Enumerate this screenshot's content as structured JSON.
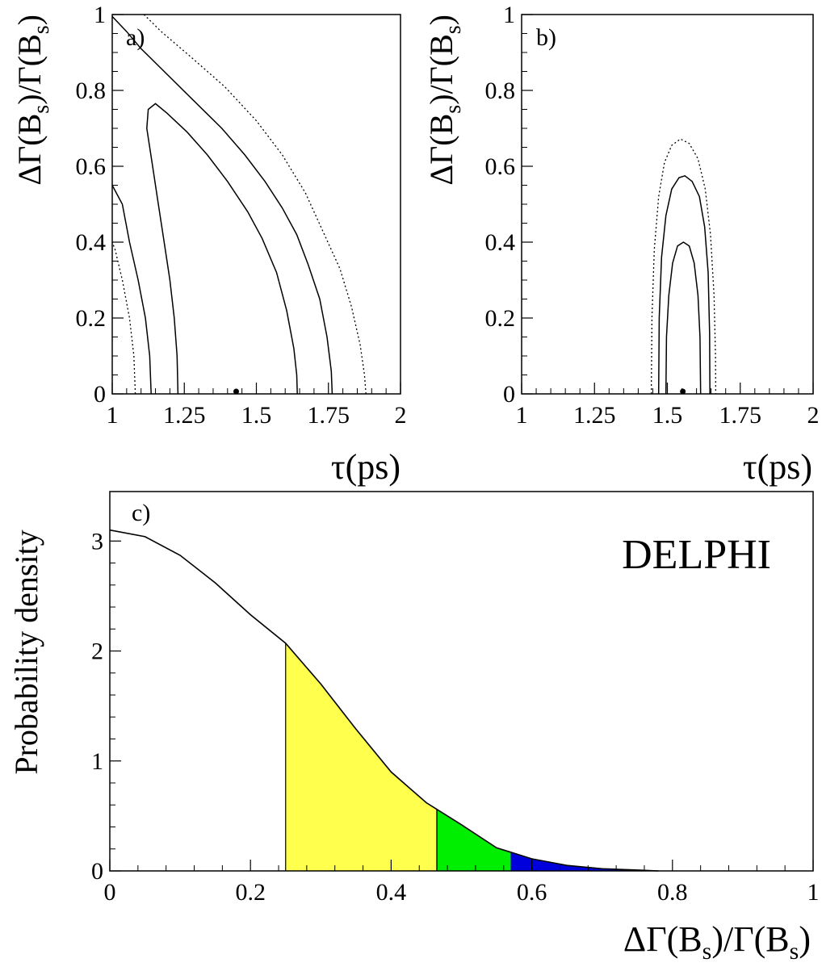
{
  "chart_data": [
    {
      "panel": "a)",
      "type": "contour",
      "xlabel_main": "τ",
      "xlabel_unit": "(ps)",
      "ylabel_parts": [
        "ΔΓ(B",
        "s",
        ")/Γ(B",
        "s",
        ")"
      ],
      "xlim": [
        1,
        2
      ],
      "ylim": [
        0,
        1
      ],
      "xticks": [
        1,
        1.25,
        1.5,
        1.75,
        2
      ],
      "xtick_labels": [
        "1",
        "1.25",
        "1.5",
        "1.75",
        "2"
      ],
      "yticks": [
        0,
        0.2,
        0.4,
        0.6,
        0.8,
        1
      ],
      "ytick_labels": [
        "0",
        "0.2",
        "0.4",
        "0.6",
        "0.8",
        "1"
      ],
      "best_fit": [
        1.43,
        0.0
      ],
      "contours": [
        {
          "style": "solid",
          "points": [
            [
              1.228,
              0
            ],
            [
              1.225,
              0.1
            ],
            [
              1.215,
              0.2
            ],
            [
              1.2,
              0.3
            ],
            [
              1.18,
              0.4
            ],
            [
              1.16,
              0.5
            ],
            [
              1.14,
              0.6
            ],
            [
              1.12,
              0.7
            ],
            [
              1.125,
              0.75
            ],
            [
              1.15,
              0.765
            ],
            [
              1.19,
              0.74
            ],
            [
              1.26,
              0.69
            ],
            [
              1.33,
              0.63
            ],
            [
              1.4,
              0.56
            ],
            [
              1.47,
              0.48
            ],
            [
              1.52,
              0.41
            ],
            [
              1.57,
              0.32
            ],
            [
              1.605,
              0.22
            ],
            [
              1.63,
              0.12
            ],
            [
              1.64,
              0.05
            ],
            [
              1.642,
              0
            ]
          ]
        },
        {
          "style": "solid",
          "points": [
            [
              1.135,
              0
            ],
            [
              1.13,
              0.1
            ],
            [
              1.115,
              0.2
            ],
            [
              1.09,
              0.3
            ],
            [
              1.06,
              0.4
            ],
            [
              1.035,
              0.5
            ],
            [
              1.0,
              0.55
            ]
          ]
        },
        {
          "style": "solid",
          "points": [
            [
              1.0,
              0.995
            ],
            [
              1.05,
              0.955
            ],
            [
              1.1,
              0.91
            ],
            [
              1.18,
              0.85
            ],
            [
              1.28,
              0.775
            ],
            [
              1.38,
              0.7
            ],
            [
              1.46,
              0.63
            ],
            [
              1.53,
              0.56
            ],
            [
              1.59,
              0.49
            ],
            [
              1.64,
              0.42
            ],
            [
              1.68,
              0.34
            ],
            [
              1.72,
              0.25
            ],
            [
              1.745,
              0.15
            ],
            [
              1.76,
              0.06
            ],
            [
              1.763,
              0
            ]
          ]
        },
        {
          "style": "dotted",
          "points": [
            [
              1.08,
              0
            ],
            [
              1.075,
              0.1
            ],
            [
              1.06,
              0.2
            ],
            [
              1.035,
              0.3
            ],
            [
              1.01,
              0.38
            ],
            [
              1.0,
              0.4
            ]
          ]
        },
        {
          "style": "dotted",
          "points": [
            [
              1.11,
              1.0
            ],
            [
              1.17,
              0.955
            ],
            [
              1.27,
              0.89
            ],
            [
              1.39,
              0.81
            ],
            [
              1.5,
              0.72
            ],
            [
              1.59,
              0.63
            ],
            [
              1.67,
              0.53
            ],
            [
              1.73,
              0.43
            ],
            [
              1.79,
              0.33
            ],
            [
              1.83,
              0.23
            ],
            [
              1.86,
              0.13
            ],
            [
              1.875,
              0.05
            ],
            [
              1.88,
              0
            ]
          ]
        }
      ]
    },
    {
      "panel": "b)",
      "type": "contour",
      "xlabel_main": "τ",
      "xlabel_unit": "(ps)",
      "ylabel_parts": [
        "ΔΓ(B",
        "s",
        ")/Γ(B",
        "s",
        ")"
      ],
      "xlim": [
        1,
        2
      ],
      "ylim": [
        0,
        1
      ],
      "xticks": [
        1,
        1.25,
        1.5,
        1.75,
        2
      ],
      "xtick_labels": [
        "1",
        "1.25",
        "1.5",
        "1.75",
        "2"
      ],
      "yticks": [
        0,
        0.2,
        0.4,
        0.6,
        0.8,
        1
      ],
      "ytick_labels": [
        "0",
        "0.2",
        "0.4",
        "0.6",
        "0.8",
        "1"
      ],
      "best_fit": [
        1.553,
        0.0
      ],
      "contours": [
        {
          "style": "solid",
          "points": [
            [
              1.495,
              0
            ],
            [
              1.497,
              0.15
            ],
            [
              1.505,
              0.26
            ],
            [
              1.518,
              0.345
            ],
            [
              1.535,
              0.39
            ],
            [
              1.555,
              0.4
            ],
            [
              1.575,
              0.39
            ],
            [
              1.592,
              0.345
            ],
            [
              1.605,
              0.26
            ],
            [
              1.612,
              0.15
            ],
            [
              1.614,
              0
            ]
          ]
        },
        {
          "style": "solid",
          "points": [
            [
              1.47,
              0
            ],
            [
              1.472,
              0.2
            ],
            [
              1.48,
              0.36
            ],
            [
              1.495,
              0.47
            ],
            [
              1.515,
              0.54
            ],
            [
              1.54,
              0.57
            ],
            [
              1.56,
              0.575
            ],
            [
              1.585,
              0.56
            ],
            [
              1.61,
              0.52
            ],
            [
              1.628,
              0.44
            ],
            [
              1.64,
              0.32
            ],
            [
              1.645,
              0.16
            ],
            [
              1.646,
              0
            ]
          ]
        },
        {
          "style": "dotted",
          "points": [
            [
              1.445,
              0
            ],
            [
              1.447,
              0.2
            ],
            [
              1.455,
              0.38
            ],
            [
              1.47,
              0.52
            ],
            [
              1.49,
              0.61
            ],
            [
              1.515,
              0.655
            ],
            [
              1.545,
              0.672
            ],
            [
              1.575,
              0.66
            ],
            [
              1.605,
              0.62
            ],
            [
              1.63,
              0.54
            ],
            [
              1.648,
              0.42
            ],
            [
              1.66,
              0.26
            ],
            [
              1.665,
              0.1
            ],
            [
              1.666,
              0
            ]
          ]
        }
      ]
    },
    {
      "panel": "c)",
      "type": "area",
      "xlabel_parts": [
        "ΔΓ(B",
        "s",
        ")/Γ(B",
        "s",
        ")"
      ],
      "ylabel": "Probability density",
      "xlim": [
        0,
        1
      ],
      "ylim": [
        0,
        3.45
      ],
      "xticks": [
        0,
        0.2,
        0.4,
        0.6,
        0.8,
        1
      ],
      "xtick_labels": [
        "0",
        "0.2",
        "0.4",
        "0.6",
        "0.8",
        "1"
      ],
      "yticks": [
        0,
        1,
        2,
        3
      ],
      "ytick_labels": [
        "0",
        "1",
        "2",
        "3"
      ],
      "curve": {
        "x": [
          0,
          0.05,
          0.1,
          0.15,
          0.2,
          0.25,
          0.3,
          0.35,
          0.4,
          0.45,
          0.465,
          0.5,
          0.55,
          0.57,
          0.6,
          0.65,
          0.7,
          0.75,
          0.78
        ],
        "y": [
          3.1,
          3.04,
          2.87,
          2.62,
          2.33,
          2.07,
          1.7,
          1.29,
          0.9,
          0.62,
          0.56,
          0.42,
          0.21,
          0.17,
          0.11,
          0.05,
          0.02,
          0.008,
          0.0
        ]
      },
      "bands": [
        {
          "from": 0.25,
          "to": 0.465,
          "color": "#ffff4d"
        },
        {
          "from": 0.465,
          "to": 0.57,
          "color": "#00ee00"
        },
        {
          "from": 0.57,
          "to": 0.78,
          "color": "#0000dd"
        }
      ],
      "annotation": "DELPHI"
    }
  ]
}
